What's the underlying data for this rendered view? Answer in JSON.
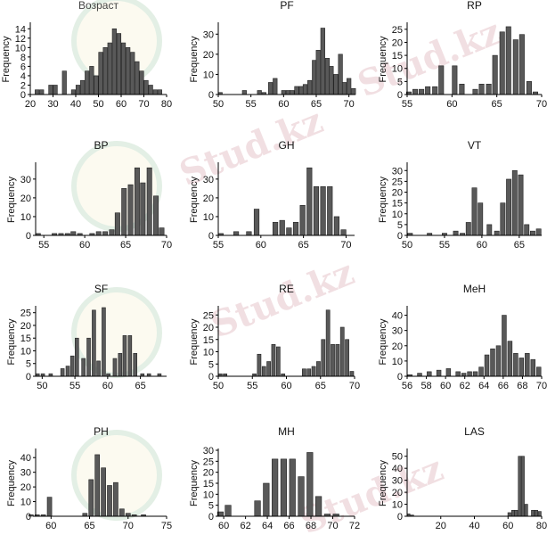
{
  "watermark": "Stud.kz",
  "chart_data": [
    {
      "type": "bar",
      "title": "Возраст",
      "ylabel": "Frequency",
      "xlim": [
        20,
        80
      ],
      "ylim": [
        0,
        15
      ],
      "xticks": [
        20,
        30,
        40,
        50,
        60,
        70,
        80
      ],
      "yticks": [
        0,
        2,
        4,
        6,
        8,
        10,
        12,
        14
      ],
      "bin_width": 2,
      "x": [
        23,
        25,
        27,
        29,
        31,
        33,
        35,
        37,
        39,
        41,
        43,
        45,
        47,
        49,
        51,
        53,
        55,
        57,
        59,
        61,
        63,
        65,
        67,
        69,
        71,
        73,
        75,
        77
      ],
      "values": [
        1,
        1,
        0,
        2,
        2,
        0,
        5,
        0,
        1,
        2,
        3,
        5,
        6,
        4,
        9,
        10,
        11,
        14,
        13,
        11,
        10,
        9,
        7,
        5,
        3,
        2,
        1,
        1
      ]
    },
    {
      "type": "bar",
      "title": "PF",
      "ylabel": "Frequency",
      "xlim": [
        50,
        71
      ],
      "ylim": [
        0,
        35
      ],
      "xticks": [
        50,
        55,
        60,
        65,
        70
      ],
      "yticks": [
        0,
        10,
        20,
        30
      ],
      "bin_width": 0.7,
      "x": [
        50.3,
        54,
        56.3,
        57,
        58,
        58.7,
        60,
        60.7,
        61.3,
        62,
        62.7,
        63.3,
        64,
        64.7,
        65.3,
        66,
        66.7,
        67.3,
        68,
        68.7,
        69.3,
        70,
        70.7
      ],
      "values": [
        1,
        2,
        2,
        1,
        6,
        8,
        2,
        2,
        2,
        4,
        4,
        5,
        7,
        17,
        22,
        33,
        18,
        14,
        10,
        20,
        6,
        8,
        3
      ]
    },
    {
      "type": "bar",
      "title": "RP",
      "ylabel": "Frequency",
      "xlim": [
        55,
        70
      ],
      "ylim": [
        0,
        27
      ],
      "xticks": [
        55,
        60,
        65,
        70
      ],
      "yticks": [
        0,
        5,
        10,
        15,
        20,
        25
      ],
      "bin_width": 0.6,
      "x": [
        55.2,
        55.9,
        56.6,
        57.3,
        58.1,
        58.8,
        59.6,
        60.3,
        61.1,
        61.8,
        62.6,
        63.3,
        64.1,
        64.8,
        65.6,
        66.3,
        67.1,
        67.8,
        68.6,
        69.3
      ],
      "values": [
        1,
        2,
        2,
        3,
        3,
        11,
        0,
        11,
        4,
        0,
        2,
        4,
        4,
        15,
        24,
        26,
        21,
        23,
        5,
        1
      ]
    },
    {
      "type": "bar",
      "title": "BP",
      "ylabel": "Frequency",
      "xlim": [
        54,
        70
      ],
      "ylim": [
        0,
        38
      ],
      "xticks": [
        55,
        60,
        65,
        70
      ],
      "yticks": [
        0,
        10,
        20,
        30
      ],
      "bin_width": 0.65,
      "x": [
        54.3,
        56.3,
        57.1,
        57.9,
        58.6,
        59.4,
        60.9,
        61.7,
        62.5,
        63.3,
        64,
        64.8,
        65.6,
        66.4,
        67.1,
        67.9,
        68.7,
        69.4
      ],
      "values": [
        1,
        1,
        1,
        1,
        2,
        1,
        1,
        2,
        2,
        3,
        12,
        25,
        27,
        36,
        28,
        36,
        21,
        4
      ]
    },
    {
      "type": "bar",
      "title": "GH",
      "ylabel": "Frequency",
      "xlim": [
        55,
        71
      ],
      "ylim": [
        0,
        38
      ],
      "xticks": [
        55,
        60,
        65,
        70
      ],
      "yticks": [
        0,
        10,
        20,
        30
      ],
      "bin_width": 0.65,
      "x": [
        55.3,
        57.1,
        58.6,
        59.5,
        61.7,
        62.5,
        63.3,
        64.1,
        64.9,
        65.7,
        66.5,
        67.3,
        68.1,
        68.9,
        69.7,
        70.5
      ],
      "values": [
        1,
        2,
        2,
        14,
        7,
        8,
        4,
        7,
        16,
        36,
        26,
        26,
        26,
        10,
        3,
        0
      ]
    },
    {
      "type": "bar",
      "title": "VT",
      "ylabel": "Frequency",
      "xlim": [
        50,
        68
      ],
      "ylim": [
        0,
        33
      ],
      "xticks": [
        50,
        55,
        60,
        65
      ],
      "yticks": [
        0,
        5,
        10,
        15,
        20,
        25,
        30
      ],
      "bin_width": 0.7,
      "x": [
        50.4,
        53,
        55,
        56.5,
        57.4,
        58.2,
        59,
        59.8,
        61,
        62,
        62.8,
        63.6,
        64.4,
        65.2,
        66,
        66.8,
        67.6
      ],
      "values": [
        1,
        1,
        1,
        2,
        1,
        6,
        22,
        15,
        5,
        2,
        15,
        26,
        30,
        28,
        5,
        2,
        3
      ]
    },
    {
      "type": "bar",
      "title": "SF",
      "ylabel": "Frequency",
      "xlim": [
        49,
        69
      ],
      "ylim": [
        0,
        27
      ],
      "xticks": [
        50,
        55,
        60,
        65
      ],
      "yticks": [
        0,
        5,
        10,
        15,
        20,
        25
      ],
      "bin_width": 0.6,
      "x": [
        49.3,
        50.1,
        51.3,
        53.1,
        53.9,
        54.6,
        55.3,
        56.3,
        57.1,
        57.9,
        58.6,
        59.4,
        60.1,
        61.1,
        61.9,
        62.6,
        63.4,
        64.2,
        65.3,
        66.3,
        67.9
      ],
      "values": [
        1,
        1,
        1,
        3,
        4,
        8,
        15,
        7,
        15,
        26,
        6,
        27,
        1,
        7,
        9,
        16,
        16,
        9,
        1,
        1,
        1
      ]
    },
    {
      "type": "bar",
      "title": "RE",
      "ylabel": "Frequency",
      "xlim": [
        50,
        70
      ],
      "ylim": [
        0,
        28
      ],
      "xticks": [
        50,
        55,
        60,
        65,
        70
      ],
      "yticks": [
        0,
        5,
        10,
        15,
        20,
        25
      ],
      "bin_width": 0.6,
      "x": [
        50.3,
        51,
        55.3,
        56,
        56.7,
        57.4,
        58.1,
        58.8,
        59.5,
        62.6,
        63.3,
        64,
        64.7,
        65.4,
        66.1,
        66.8,
        67.5,
        68.2,
        68.9,
        69.6
      ],
      "values": [
        1,
        1,
        1,
        9,
        4,
        6,
        13,
        12,
        1,
        3,
        3,
        4,
        6,
        15,
        27,
        13,
        13,
        20,
        15,
        2
      ]
    },
    {
      "type": "bar",
      "title": "MeH",
      "ylabel": "Frequency",
      "xlim": [
        56,
        70
      ],
      "ylim": [
        0,
        45
      ],
      "xticks": [
        56,
        58,
        60,
        62,
        64,
        66,
        68,
        70
      ],
      "yticks": [
        0,
        10,
        20,
        30,
        40
      ],
      "bin_width": 0.5,
      "x": [
        56.3,
        57.3,
        58.3,
        59.3,
        60.3,
        61.3,
        61.9,
        62.5,
        63.1,
        63.7,
        64.3,
        64.9,
        65.5,
        66.1,
        66.7,
        67.3,
        67.9,
        68.5,
        69.1,
        69.7
      ],
      "values": [
        1,
        2,
        3,
        4,
        5,
        3,
        2,
        3,
        3,
        6,
        14,
        18,
        20,
        40,
        23,
        15,
        12,
        15,
        11,
        6
      ]
    },
    {
      "type": "bar",
      "title": "PH",
      "ylabel": "Frequency",
      "xlim": [
        58,
        75
      ],
      "ylim": [
        0,
        45
      ],
      "xticks": [
        60,
        65,
        70,
        75
      ],
      "yticks": [
        0,
        10,
        20,
        30,
        40
      ],
      "bin_width": 0.65,
      "x": [
        57.4,
        58.2,
        59,
        59.8,
        64.4,
        65.2,
        66,
        66.8,
        67.6,
        68.4,
        69.2,
        70,
        70.8,
        72
      ],
      "values": [
        1,
        1,
        1,
        13,
        2,
        25,
        42,
        33,
        21,
        23,
        5,
        2,
        1,
        1
      ]
    },
    {
      "type": "bar",
      "title": "MH",
      "ylabel": "Frequency",
      "xlim": [
        59.5,
        72
      ],
      "ylim": [
        0,
        30
      ],
      "xticks": [
        60,
        62,
        64,
        66,
        68,
        70,
        72
      ],
      "yticks": [
        0,
        5,
        10,
        15,
        20,
        25,
        30
      ],
      "bin_width": 0.6,
      "x": [
        59.7,
        60.4,
        63.1,
        63.9,
        64.7,
        65.5,
        66.3,
        67.1,
        67.9,
        68.7,
        69.5,
        70.3
      ],
      "values": [
        2,
        5,
        7,
        15,
        26,
        26,
        26,
        18,
        29,
        9,
        1,
        1
      ]
    },
    {
      "type": "bar",
      "title": "LAS",
      "ylabel": "Frequency",
      "xlim": [
        0,
        80
      ],
      "ylim": [
        0,
        55
      ],
      "xticks": [
        20,
        40,
        60,
        80
      ],
      "yticks": [
        0,
        10,
        20,
        30,
        40,
        50
      ],
      "bin_width": 2,
      "x": [
        0.8,
        3,
        60.8,
        63,
        64.8,
        67,
        68.8,
        70.8,
        72.8,
        74.8,
        76.8,
        78.8
      ],
      "values": [
        2,
        1,
        3,
        5,
        5,
        50,
        50,
        10,
        0,
        5,
        5,
        4
      ]
    }
  ]
}
